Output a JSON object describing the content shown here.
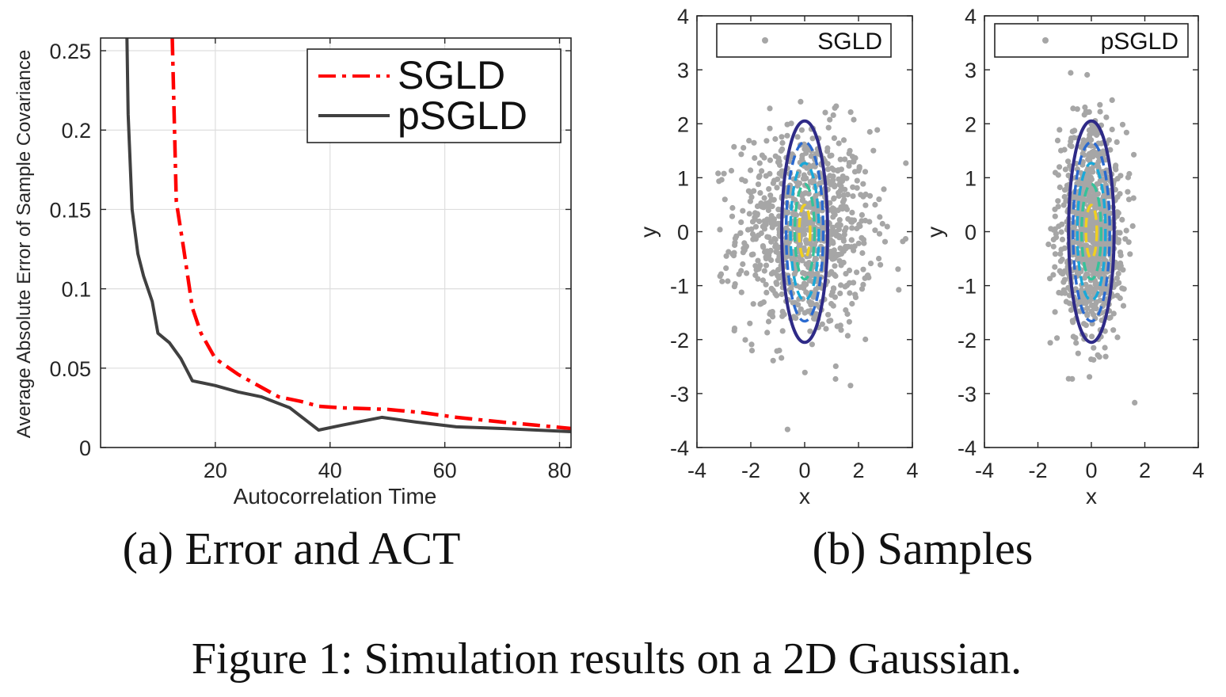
{
  "figure_caption": "Figure 1: Simulation results on a 2D Gaussian.",
  "panel_a": {
    "caption": "(a) Error and ACT",
    "xlabel": "Autocorrelation Time",
    "ylabel": "Average Absolute Error of Sample Covariance",
    "legend": {
      "sgld": "SGLD",
      "psgld": "pSGLD"
    }
  },
  "panel_b": {
    "caption": "(b) Samples",
    "left": {
      "legend": "SGLD",
      "xlabel": "x",
      "ylabel": "y"
    },
    "right": {
      "legend": "pSGLD",
      "xlabel": "x",
      "ylabel": "y"
    }
  },
  "colors": {
    "sgld": "#ff0000",
    "psgld": "#404040",
    "samples": "#a6a6a6",
    "contour_outer": "#2e2a87",
    "contour_mid": "#1aa8d8",
    "contour_inner": "#f0d020"
  },
  "chart_data": [
    {
      "type": "line",
      "xlabel": "Autocorrelation Time",
      "ylabel": "Average Absolute Error of Sample Covariance",
      "xlim": [
        0,
        82
      ],
      "ylim": [
        0,
        0.258
      ],
      "xticks": [
        20,
        40,
        60,
        80
      ],
      "yticks": [
        0,
        0.05,
        0.1,
        0.15,
        0.2,
        0.25
      ],
      "ytick_labels": [
        "0",
        "0.05",
        "0.1",
        "0.15",
        "0.2",
        "0.25"
      ],
      "grid": true,
      "legend_position": "top-right",
      "series": [
        {
          "name": "SGLD",
          "style": "dash-dot",
          "color": "#ff0000",
          "x": [
            12.5,
            13.2,
            14.5,
            16,
            17.5,
            20,
            24,
            28,
            31,
            35,
            38,
            42,
            50,
            56,
            62,
            70,
            76,
            82
          ],
          "y": [
            0.258,
            0.155,
            0.125,
            0.088,
            0.072,
            0.056,
            0.046,
            0.038,
            0.032,
            0.029,
            0.026,
            0.025,
            0.024,
            0.022,
            0.019,
            0.016,
            0.014,
            0.012
          ]
        },
        {
          "name": "pSGLD",
          "style": "solid",
          "color": "#404040",
          "x": [
            4.6,
            4.8,
            5.5,
            6.5,
            7.5,
            9,
            10,
            12,
            14,
            16,
            20,
            24,
            28,
            33,
            38,
            42,
            49,
            55,
            62,
            70,
            76,
            82
          ],
          "y": [
            0.258,
            0.21,
            0.15,
            0.122,
            0.108,
            0.092,
            0.072,
            0.066,
            0.056,
            0.042,
            0.039,
            0.035,
            0.032,
            0.025,
            0.011,
            0.014,
            0.019,
            0.016,
            0.013,
            0.012,
            0.011,
            0.01
          ]
        }
      ]
    },
    {
      "type": "scatter",
      "legend": "SGLD",
      "xlabel": "x",
      "ylabel": "y",
      "xlim": [
        -4,
        4
      ],
      "ylim": [
        -4,
        4
      ],
      "xticks": [
        -4,
        -2,
        0,
        2,
        4
      ],
      "yticks": [
        4,
        3,
        2,
        1,
        0,
        -1,
        -2,
        -3,
        -4
      ],
      "contour": {
        "center": [
          0,
          0
        ],
        "semi_axes": [
          0.85,
          2.05
        ],
        "levels": 5
      },
      "samples": {
        "count": 900,
        "sigma_x": 1.25,
        "sigma_y": 0.95
      }
    },
    {
      "type": "scatter",
      "legend": "pSGLD",
      "xlabel": "x",
      "ylabel": "y",
      "xlim": [
        -4,
        4
      ],
      "ylim": [
        -4,
        4
      ],
      "xticks": [
        -4,
        -2,
        0,
        2,
        4
      ],
      "yticks": [
        4,
        3,
        2,
        1,
        0,
        -1,
        -2,
        -3,
        -4
      ],
      "contour": {
        "center": [
          0,
          0
        ],
        "semi_axes": [
          0.85,
          2.05
        ],
        "levels": 5
      },
      "samples": {
        "count": 900,
        "sigma_x": 0.6,
        "sigma_y": 0.95
      }
    }
  ]
}
